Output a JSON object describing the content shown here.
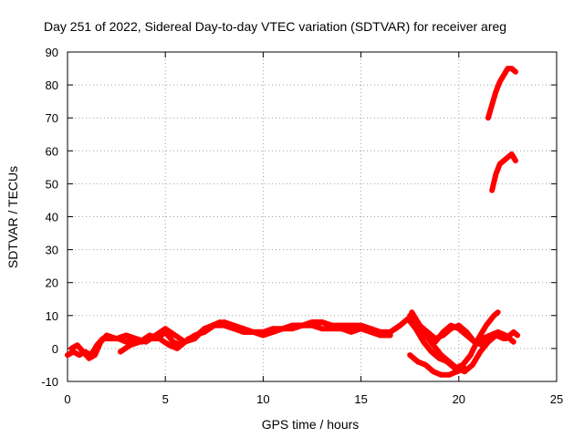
{
  "chart_data": {
    "type": "line",
    "title": "Day 251 of 2022, Sidereal Day-to-day VTEC variation (SDTVAR) for receiver areg",
    "xlabel": "GPS time / hours",
    "ylabel": "SDTVAR / TECUs",
    "xlim": [
      0,
      25
    ],
    "ylim": [
      -10,
      90
    ],
    "xticks": [
      0,
      5,
      10,
      15,
      20,
      25
    ],
    "yticks": [
      -10,
      0,
      10,
      20,
      30,
      40,
      50,
      60,
      70,
      80,
      90
    ],
    "grid": true,
    "color": "#ff0000",
    "series": [
      {
        "x": [
          0.0,
          0.3,
          0.6,
          0.9,
          1.2,
          1.5,
          1.8,
          2.2,
          2.6,
          3.0,
          3.4,
          3.8,
          4.2,
          4.6,
          5.0,
          5.4,
          5.8,
          6.2,
          6.6,
          7.0,
          7.4,
          7.8,
          8.2,
          8.6,
          9.0,
          9.5,
          10.0,
          10.5,
          11.0,
          11.5,
          12.0,
          12.5,
          13.0,
          13.5,
          14.0,
          14.5,
          15.0,
          15.5,
          16.0,
          16.5,
          17.0,
          17.4
        ],
        "y": [
          -2,
          -1,
          -2,
          -1,
          -2,
          1,
          3,
          3,
          3,
          2,
          3,
          2,
          3,
          3,
          5,
          2,
          1,
          3,
          4,
          6,
          7,
          8,
          7,
          6,
          5,
          5,
          5,
          6,
          6,
          7,
          7,
          7,
          8,
          7,
          7,
          7,
          7,
          6,
          5,
          5,
          7,
          9
        ]
      },
      {
        "x": [
          0.2,
          0.5,
          0.8,
          1.1,
          1.4,
          1.7,
          2.0,
          2.5,
          3.0,
          3.5,
          4.0,
          4.5,
          5.0,
          5.5,
          6.0,
          6.5,
          7.0,
          7.5,
          8.0,
          8.5,
          9.0,
          9.5,
          10.0,
          10.5,
          11.0,
          11.5,
          12.0,
          12.5,
          13.0,
          13.5,
          14.0,
          14.5,
          15.0,
          15.5,
          16.0,
          16.5,
          17.0
        ],
        "y": [
          0,
          1,
          -1,
          -3,
          -2,
          2,
          4,
          3,
          4,
          3,
          2,
          4,
          6,
          4,
          2,
          4,
          5,
          7,
          8,
          7,
          6,
          5,
          5,
          5,
          6,
          7,
          7,
          8,
          8,
          7,
          6,
          6,
          6,
          6,
          5,
          5,
          7
        ]
      },
      {
        "x": [
          2.7,
          3.2,
          3.7,
          4.2,
          4.7,
          5.2,
          5.6,
          6.0,
          6.5,
          7.0,
          7.5,
          8.0,
          8.5,
          9.0,
          9.5,
          10.0,
          10.5,
          11.0,
          11.5,
          12.0,
          12.5,
          13.0,
          13.5,
          14.0,
          14.5,
          15.0,
          15.5,
          16.0,
          16.5
        ],
        "y": [
          -1,
          1,
          2,
          4,
          3,
          1,
          0,
          2,
          3,
          6,
          7,
          7,
          6,
          5,
          5,
          4,
          5,
          6,
          6,
          7,
          7,
          6,
          6,
          6,
          5,
          6,
          5,
          4,
          4
        ]
      },
      {
        "x": [
          17.4,
          17.8,
          18.2,
          18.6,
          19.0,
          19.4,
          19.8,
          20.2,
          20.6,
          21.0,
          21.4,
          21.8,
          22.0
        ],
        "y": [
          9,
          6,
          2,
          -1,
          -3,
          -4,
          -6,
          -5,
          -2,
          3,
          7,
          10,
          11
        ]
      },
      {
        "x": [
          17.5,
          17.9,
          18.3,
          18.7,
          19.1,
          19.5,
          19.9,
          20.3,
          20.7,
          21.1,
          21.5,
          21.9,
          22.3
        ],
        "y": [
          10,
          8,
          4,
          1,
          -2,
          -4,
          -6,
          -7,
          -5,
          -1,
          2,
          4,
          3
        ]
      },
      {
        "x": [
          17.6,
          18.0,
          18.4,
          18.8,
          19.2,
          19.6,
          20.0,
          20.4,
          20.8,
          21.2,
          21.6,
          22.0,
          22.4,
          22.8
        ],
        "y": [
          11,
          7,
          5,
          3,
          4,
          6,
          7,
          5,
          2,
          1,
          3,
          5,
          4,
          2
        ]
      },
      {
        "x": [
          17.5,
          17.9,
          18.3,
          18.7,
          19.1,
          19.5,
          19.9,
          20.3
        ],
        "y": [
          -2,
          -4,
          -5,
          -7,
          -8,
          -8,
          -7,
          -6
        ]
      },
      {
        "x": [
          18.8,
          19.2,
          19.6,
          20.0,
          20.4,
          20.8,
          21.2,
          21.6,
          22.0,
          22.4
        ],
        "y": [
          2,
          5,
          7,
          6,
          4,
          2,
          3,
          4,
          5,
          3
        ]
      },
      {
        "x": [
          22.4,
          22.6,
          22.8,
          23.0
        ],
        "y": [
          3,
          4,
          5,
          4
        ]
      },
      {
        "x": [
          21.5,
          21.7,
          21.9,
          22.1,
          22.3,
          22.5,
          22.7,
          22.9
        ],
        "y": [
          70,
          74,
          78,
          81,
          83,
          85,
          85,
          84
        ]
      },
      {
        "x": [
          21.7,
          21.9,
          22.1,
          22.3,
          22.5,
          22.7,
          22.9
        ],
        "y": [
          48,
          53,
          56,
          57,
          58,
          59,
          57
        ]
      }
    ]
  }
}
